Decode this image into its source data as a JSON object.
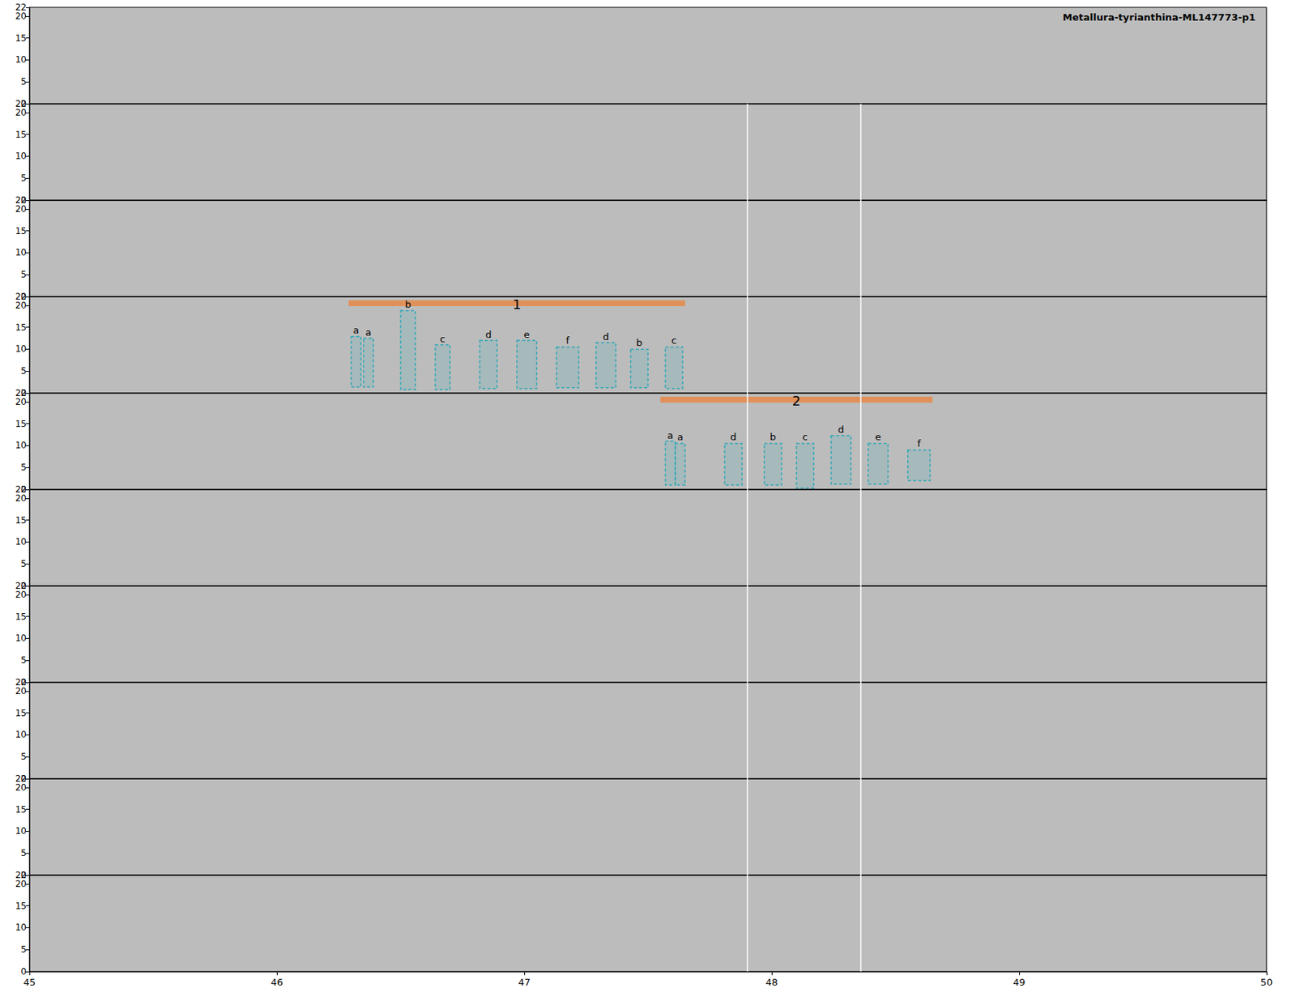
{
  "chart_data": {
    "type": "spectrogram",
    "title": "Metallura-tyrianthina-ML147773-p1",
    "panel_count": 10,
    "xlim": [
      45,
      50
    ],
    "xticks": [
      45,
      46,
      47,
      48,
      49,
      50
    ],
    "ylim": [
      0,
      22
    ],
    "yticks": [
      0,
      5,
      10,
      15,
      20
    ],
    "grid": false,
    "cursor_lines": {
      "x": [
        47.9,
        48.36
      ],
      "panels": [
        2,
        3,
        4,
        5,
        6,
        7,
        8,
        9,
        10
      ],
      "color": "#ffffff"
    },
    "box_color": "#2aa8b8",
    "phrases": [
      {
        "label": "1",
        "panel": 4,
        "x": [
          46.29,
          47.65
        ],
        "y": 20.5,
        "color": "#e0915a",
        "syllables": [
          {
            "label": "a",
            "x": [
              46.3,
              46.34
            ],
            "y": [
              1.4,
              12.9
            ]
          },
          {
            "label": "a",
            "x": [
              46.35,
              46.39
            ],
            "y": [
              1.4,
              12.5
            ]
          },
          {
            "label": "b",
            "x": [
              46.5,
              46.56
            ],
            "y": [
              0.8,
              18.8
            ]
          },
          {
            "label": "c",
            "x": [
              46.64,
              46.7
            ],
            "y": [
              0.8,
              11.0
            ]
          },
          {
            "label": "d",
            "x": [
              46.82,
              46.89
            ],
            "y": [
              1.0,
              12.0
            ]
          },
          {
            "label": "e",
            "x": [
              46.97,
              47.05
            ],
            "y": [
              1.0,
              12.0
            ]
          },
          {
            "label": "f",
            "x": [
              47.13,
              47.22
            ],
            "y": [
              1.2,
              10.5
            ]
          },
          {
            "label": "d",
            "x": [
              47.29,
              47.37
            ],
            "y": [
              1.2,
              11.5
            ]
          },
          {
            "label": "b",
            "x": [
              47.43,
              47.5
            ],
            "y": [
              1.2,
              10.0
            ]
          },
          {
            "label": "c",
            "x": [
              47.57,
              47.64
            ],
            "y": [
              1.0,
              10.5
            ]
          }
        ]
      },
      {
        "label": "2",
        "panel": 5,
        "x": [
          47.55,
          48.65
        ],
        "y": 20.5,
        "color": "#e0915a",
        "syllables": [
          {
            "label": "a",
            "x": [
              47.57,
              47.61
            ],
            "y": [
              1.0,
              11.0
            ]
          },
          {
            "label": "a",
            "x": [
              47.61,
              47.65
            ],
            "y": [
              1.0,
              10.5
            ]
          },
          {
            "label": "d",
            "x": [
              47.81,
              47.88
            ],
            "y": [
              1.0,
              10.5
            ]
          },
          {
            "label": "b",
            "x": [
              47.97,
              48.04
            ],
            "y": [
              1.0,
              10.5
            ]
          },
          {
            "label": "c",
            "x": [
              48.1,
              48.17
            ],
            "y": [
              0.3,
              10.5
            ]
          },
          {
            "label": "d",
            "x": [
              48.24,
              48.32
            ],
            "y": [
              1.2,
              12.3
            ]
          },
          {
            "label": "e",
            "x": [
              48.39,
              48.47
            ],
            "y": [
              1.2,
              10.5
            ]
          },
          {
            "label": "f",
            "x": [
              48.55,
              48.64
            ],
            "y": [
              2.0,
              9.0
            ]
          }
        ]
      }
    ]
  }
}
